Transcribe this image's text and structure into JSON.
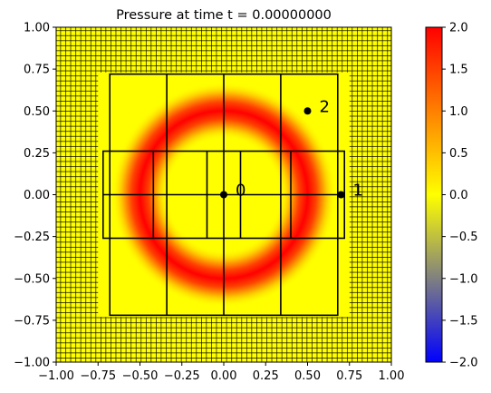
{
  "chart_data": [
    {
      "type": "heatmap",
      "title": "Pressure at time t =     0.00000000",
      "xlim": [
        -1.0,
        1.0
      ],
      "ylim": [
        -1.0,
        1.0
      ],
      "x_ticks": [
        "−1.00",
        "−0.75",
        "−0.50",
        "−0.25",
        "0.00",
        "0.25",
        "0.50",
        "0.75",
        "1.00"
      ],
      "x_tick_values": [
        -1.0,
        -0.75,
        -0.5,
        -0.25,
        0.0,
        0.25,
        0.5,
        0.75,
        1.0
      ],
      "y_ticks": [
        "−1.00",
        "−0.75",
        "−0.50",
        "−0.25",
        "0.00",
        "0.25",
        "0.50",
        "0.75",
        "1.00"
      ],
      "y_tick_values": [
        -1.0,
        -0.75,
        -0.5,
        -0.25,
        0.0,
        0.25,
        0.5,
        0.75,
        1.0
      ],
      "field": {
        "description_ring_center": [
          0.0,
          0.0
        ],
        "ring_radius": 0.5,
        "ring_width": 0.09,
        "peak_value": 2.0,
        "background_value": 0.0
      },
      "colorbar": {
        "vmin": -2.0,
        "vmax": 2.0,
        "colors": [
          "#0000ff",
          "#808080",
          "#ffff00",
          "#ff8000",
          "#ff0000"
        ],
        "ticks": [
          "2.0",
          "1.5",
          "1.0",
          "0.5",
          "0.0",
          "−0.5",
          "−1.0",
          "−1.5",
          "−2.0"
        ],
        "tick_values": [
          2.0,
          1.5,
          1.0,
          0.5,
          0.0,
          -0.5,
          -1.0,
          -1.5,
          -2.0
        ]
      },
      "grid": {
        "coarse_patch_boxes": [
          [
            -0.75,
            -0.73,
            0.75,
            0.73
          ]
        ],
        "level1_boxes": [
          [
            -0.68,
            -0.72,
            0.68,
            0.72
          ],
          [
            -0.72,
            -0.26,
            0.72,
            0.26
          ]
        ],
        "vertical_lines": [
          {
            "x": -0.34,
            "y0": -0.72,
            "y1": 0.72
          },
          {
            "x": 0.34,
            "y0": -0.72,
            "y1": 0.72
          },
          {
            "x": 0.0,
            "y0": -0.72,
            "y1": 0.72
          },
          {
            "x": -0.42,
            "y0": -0.26,
            "y1": 0.26
          },
          {
            "x": 0.4,
            "y0": -0.26,
            "y1": 0.26
          },
          {
            "x": -0.1,
            "y0": -0.26,
            "y1": 0.26
          },
          {
            "x": 0.1,
            "y0": -0.26,
            "y1": 0.26
          }
        ],
        "horizontal_lines": [
          {
            "y": 0.0,
            "x0": -0.72,
            "x1": 0.72
          }
        ],
        "outer_fine_cell_size": 0.03
      },
      "gauges": [
        {
          "label": "0",
          "x": 0.0,
          "y": 0.0
        },
        {
          "label": "1",
          "x": 0.7,
          "y": 0.0
        },
        {
          "label": "2",
          "x": 0.5,
          "y": 0.5
        }
      ]
    }
  ]
}
